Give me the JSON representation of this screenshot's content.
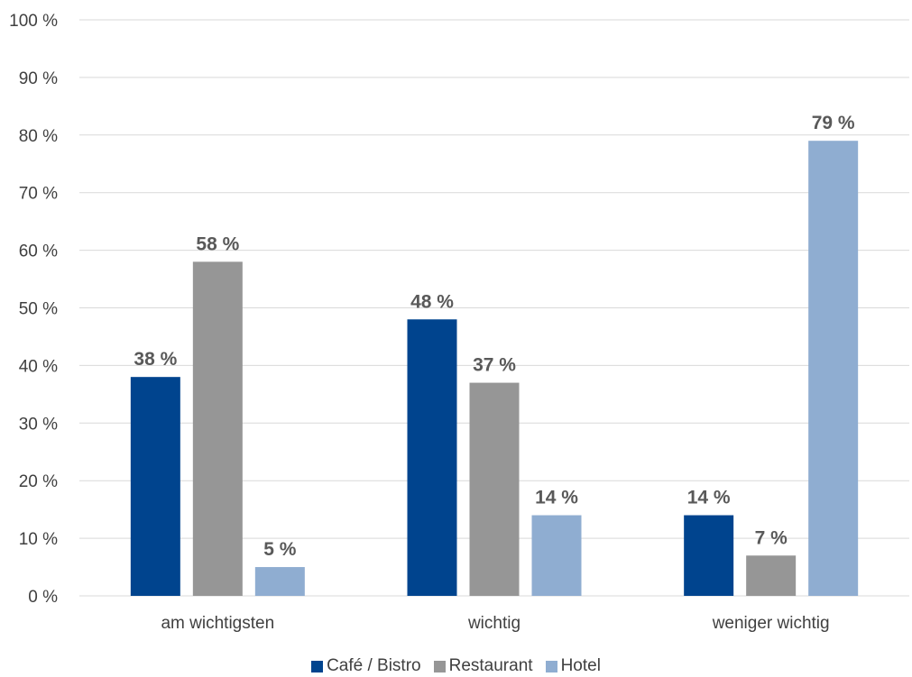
{
  "chart_data": {
    "type": "bar",
    "categories": [
      "am wichtigsten",
      "wichtig",
      "weniger wichtig"
    ],
    "series": [
      {
        "name": "Café / Bistro",
        "values": [
          38,
          48,
          14
        ],
        "labels": [
          "38 %",
          "48 %",
          "14 %"
        ],
        "color": "#00448E"
      },
      {
        "name": "Restaurant",
        "values": [
          58,
          37,
          7
        ],
        "labels": [
          "58 %",
          "37 %",
          "7 %"
        ],
        "color": "#969696"
      },
      {
        "name": "Hotel",
        "values": [
          5,
          14,
          79
        ],
        "labels": [
          "5 %",
          "14 %",
          "79 %"
        ],
        "color": "#8FADD1"
      }
    ],
    "yticks": [
      "0 %",
      "10 %",
      "20 %",
      "30 %",
      "40 %",
      "50 %",
      "60 %",
      "70 %",
      "80 %",
      "90 %",
      "100 %"
    ],
    "ylim": [
      0,
      100
    ],
    "grid": true,
    "legend_position": "bottom",
    "gridline_color": "#D9D9D9"
  }
}
